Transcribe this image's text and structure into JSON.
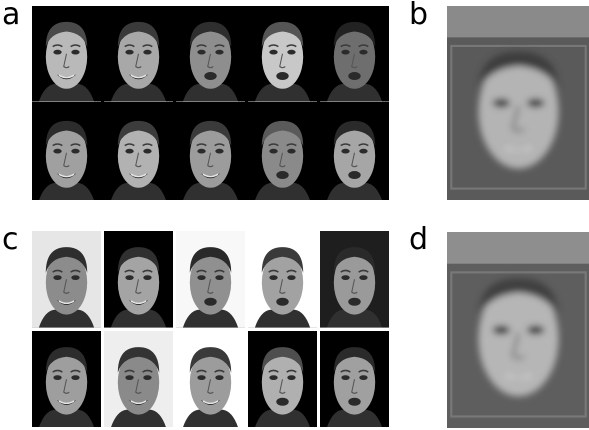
{
  "labels": {
    "a": "a",
    "b": "b",
    "c": "c",
    "d": "d"
  },
  "panel_a": {
    "rows": 2,
    "cols": 5,
    "cells": [
      {
        "bg": "#000000",
        "skin": "#b9b9b9",
        "hair": "#4a4a4a",
        "smile": true
      },
      {
        "bg": "#000000",
        "skin": "#a8a8a8",
        "hair": "#3a3a3a",
        "smile": true
      },
      {
        "bg": "#000000",
        "skin": "#8e8e8e",
        "hair": "#2e2e2e",
        "smile": false
      },
      {
        "bg": "#000000",
        "skin": "#c8c8c8",
        "hair": "#555555",
        "smile": false
      },
      {
        "bg": "#000000",
        "skin": "#6e6e6e",
        "hair": "#222222",
        "smile": false
      },
      {
        "bg": "#000000",
        "skin": "#a0a0a0",
        "hair": "#2c2c2c",
        "smile": true
      },
      {
        "bg": "#000000",
        "skin": "#b2b2b2",
        "hair": "#3c3c3c",
        "smile": true
      },
      {
        "bg": "#000000",
        "skin": "#9c9c9c",
        "hair": "#3a3a3a",
        "smile": true
      },
      {
        "bg": "#000000",
        "skin": "#8a8a8a",
        "hair": "#5a5a5a",
        "smile": false
      },
      {
        "bg": "#000000",
        "skin": "#a6a6a6",
        "hair": "#2a2a2a",
        "smile": false
      }
    ]
  },
  "panel_c": {
    "rows": 2,
    "cols": 5,
    "cells": [
      {
        "bg": "#e6e6e6",
        "skin": "#8c8c8c",
        "hair": "#2e2e2e",
        "smile": true
      },
      {
        "bg": "#000000",
        "skin": "#a4a4a4",
        "hair": "#303030",
        "smile": true
      },
      {
        "bg": "#f8f8f8",
        "skin": "#909090",
        "hair": "#2a2a2a",
        "smile": false
      },
      {
        "bg": "#ffffff",
        "skin": "#a2a2a2",
        "hair": "#3a3a3a",
        "smile": false
      },
      {
        "bg": "#1e1e1e",
        "skin": "#9a9a9a",
        "hair": "#2a2a2a",
        "smile": false
      },
      {
        "bg": "#000000",
        "skin": "#9e9e9e",
        "hair": "#2c2c2c",
        "smile": true
      },
      {
        "bg": "#eeeeee",
        "skin": "#8a8a8a",
        "hair": "#333333",
        "smile": true
      },
      {
        "bg": "#ffffff",
        "skin": "#9c9c9c",
        "hair": "#3a3a3a",
        "smile": true
      },
      {
        "bg": "#000000",
        "skin": "#b0b0b0",
        "hair": "#4e4e4e",
        "smile": false
      },
      {
        "bg": "#000000",
        "skin": "#a0a0a0",
        "hair": "#2a2a2a",
        "smile": false
      }
    ]
  },
  "panel_b": {
    "top": "#8a8a8a",
    "bg": "#5a5a5a",
    "skin": "#b4b4b4",
    "hair": "#3c3c3c"
  },
  "panel_d": {
    "top": "#8e8e8e",
    "bg": "#5e5e5e",
    "skin": "#b6b6b6",
    "hair": "#404040"
  }
}
